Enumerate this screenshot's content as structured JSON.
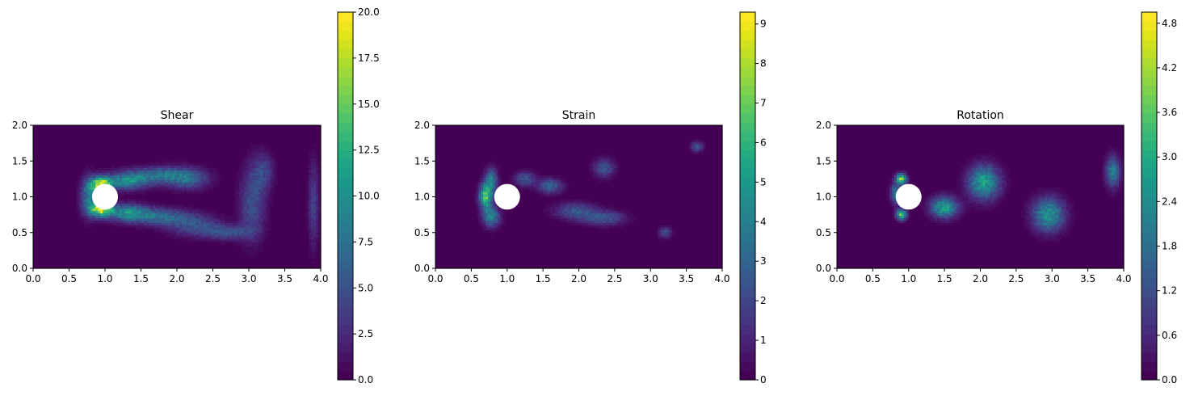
{
  "chart_data": [
    {
      "type": "heatmap",
      "title": "Shear",
      "xlim": [
        0,
        4
      ],
      "ylim": [
        0,
        2
      ],
      "xticks": [
        "0.0",
        "0.5",
        "1.0",
        "1.5",
        "2.0",
        "2.5",
        "3.0",
        "3.5",
        "4.0"
      ],
      "yticks": [
        "0.0",
        "0.5",
        "1.0",
        "1.5",
        "2.0"
      ],
      "colorbar": {
        "min": 0,
        "max": 20,
        "ticks": [
          "0.0",
          "2.5",
          "5.0",
          "7.5",
          "10.0",
          "12.5",
          "15.0",
          "17.5",
          "20.0"
        ],
        "levels": 40
      },
      "obstacle": {
        "cx": 1.0,
        "cy": 1.0,
        "r": 0.18
      },
      "features": [
        {
          "x": 0.95,
          "y": 1.17,
          "sx": 0.1,
          "sy": 0.07,
          "v": 18
        },
        {
          "x": 0.95,
          "y": 0.83,
          "sx": 0.1,
          "sy": 0.07,
          "v": 18
        },
        {
          "x": 0.78,
          "y": 1.0,
          "sx": 0.08,
          "sy": 0.18,
          "v": 8
        },
        {
          "x": 1.3,
          "y": 1.22,
          "sx": 0.2,
          "sy": 0.08,
          "v": 9
        },
        {
          "x": 1.3,
          "y": 0.78,
          "sx": 0.2,
          "sy": 0.08,
          "v": 9
        },
        {
          "x": 1.75,
          "y": 1.3,
          "sx": 0.28,
          "sy": 0.08,
          "v": 7
        },
        {
          "x": 2.15,
          "y": 1.25,
          "sx": 0.2,
          "sy": 0.1,
          "v": 6
        },
        {
          "x": 1.75,
          "y": 0.72,
          "sx": 0.28,
          "sy": 0.08,
          "v": 7
        },
        {
          "x": 2.25,
          "y": 0.6,
          "sx": 0.25,
          "sy": 0.1,
          "v": 5
        },
        {
          "x": 2.7,
          "y": 0.5,
          "sx": 0.22,
          "sy": 0.07,
          "v": 5
        },
        {
          "x": 3.05,
          "y": 0.9,
          "sx": 0.12,
          "sy": 0.35,
          "v": 5
        },
        {
          "x": 3.2,
          "y": 1.35,
          "sx": 0.1,
          "sy": 0.18,
          "v": 4
        },
        {
          "x": 3.9,
          "y": 0.9,
          "sx": 0.05,
          "sy": 0.4,
          "v": 4
        }
      ]
    },
    {
      "type": "heatmap",
      "title": "Strain",
      "xlim": [
        0,
        4
      ],
      "ylim": [
        0,
        2
      ],
      "xticks": [
        "0.0",
        "0.5",
        "1.0",
        "1.5",
        "2.0",
        "2.5",
        "3.0",
        "3.5",
        "4.0"
      ],
      "yticks": [
        "0.0",
        "0.5",
        "1.0",
        "1.5",
        "2.0"
      ],
      "colorbar": {
        "min": 0,
        "max": 9.3,
        "ticks": [
          "0",
          "1",
          "2",
          "3",
          "4",
          "5",
          "6",
          "7",
          "8",
          "9"
        ],
        "levels": 40
      },
      "obstacle": {
        "cx": 1.0,
        "cy": 1.0,
        "r": 0.18
      },
      "features": [
        {
          "x": 0.7,
          "y": 1.0,
          "sx": 0.06,
          "sy": 0.12,
          "v": 6.5
        },
        {
          "x": 0.78,
          "y": 1.22,
          "sx": 0.06,
          "sy": 0.12,
          "v": 4
        },
        {
          "x": 0.78,
          "y": 0.72,
          "sx": 0.08,
          "sy": 0.1,
          "v": 4
        },
        {
          "x": 1.25,
          "y": 1.25,
          "sx": 0.1,
          "sy": 0.07,
          "v": 2.5
        },
        {
          "x": 1.6,
          "y": 1.15,
          "sx": 0.12,
          "sy": 0.07,
          "v": 3
        },
        {
          "x": 2.35,
          "y": 1.4,
          "sx": 0.1,
          "sy": 0.09,
          "v": 2.5
        },
        {
          "x": 1.95,
          "y": 0.8,
          "sx": 0.2,
          "sy": 0.08,
          "v": 2.5
        },
        {
          "x": 2.35,
          "y": 0.7,
          "sx": 0.2,
          "sy": 0.07,
          "v": 2.5
        },
        {
          "x": 3.2,
          "y": 0.5,
          "sx": 0.06,
          "sy": 0.05,
          "v": 2.5
        },
        {
          "x": 3.65,
          "y": 1.7,
          "sx": 0.06,
          "sy": 0.05,
          "v": 2.5
        }
      ]
    },
    {
      "type": "heatmap",
      "title": "Rotation",
      "xlim": [
        0,
        4
      ],
      "ylim": [
        0,
        2
      ],
      "xticks": [
        "0.0",
        "0.5",
        "1.0",
        "1.5",
        "2.0",
        "2.5",
        "3.0",
        "3.5",
        "4.0"
      ],
      "yticks": [
        "0.0",
        "0.5",
        "1.0",
        "1.5",
        "2.0"
      ],
      "colorbar": {
        "min": 0,
        "max": 4.95,
        "ticks": [
          "0.0",
          "0.6",
          "1.2",
          "1.8",
          "2.4",
          "3.0",
          "3.6",
          "4.2",
          "4.8"
        ],
        "levels": 40
      },
      "obstacle": {
        "cx": 1.0,
        "cy": 1.0,
        "r": 0.18
      },
      "features": [
        {
          "x": 0.9,
          "y": 1.25,
          "sx": 0.05,
          "sy": 0.05,
          "v": 4
        },
        {
          "x": 0.9,
          "y": 0.75,
          "sx": 0.05,
          "sy": 0.05,
          "v": 3.5
        },
        {
          "x": 0.82,
          "y": 1.05,
          "sx": 0.05,
          "sy": 0.1,
          "v": 2
        },
        {
          "x": 1.5,
          "y": 0.85,
          "sx": 0.13,
          "sy": 0.1,
          "v": 2.8
        },
        {
          "x": 2.05,
          "y": 1.2,
          "sx": 0.15,
          "sy": 0.16,
          "v": 2.8
        },
        {
          "x": 2.95,
          "y": 0.75,
          "sx": 0.15,
          "sy": 0.16,
          "v": 2.6
        },
        {
          "x": 3.85,
          "y": 1.35,
          "sx": 0.07,
          "sy": 0.15,
          "v": 2
        }
      ]
    }
  ]
}
